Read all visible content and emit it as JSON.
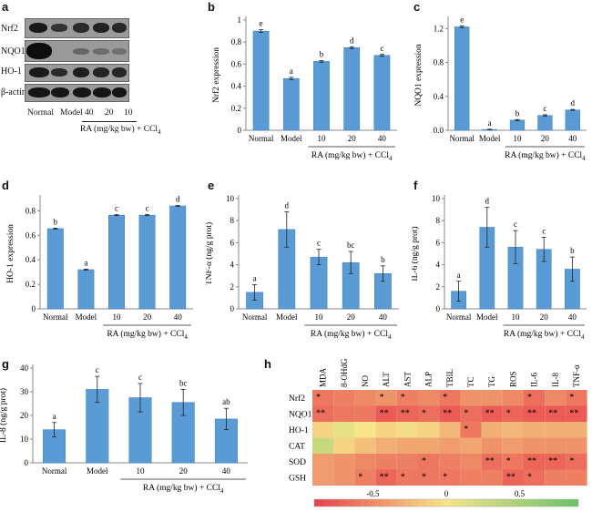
{
  "panel_labels": {
    "a": "a",
    "b": "b",
    "c": "c",
    "d": "d",
    "e": "e",
    "f": "f",
    "g": "g",
    "h": "h"
  },
  "blot": {
    "rows": [
      "Nrf2",
      "NQO1",
      "HO-1",
      "β-actin"
    ],
    "lanes": [
      "Normal",
      "Model",
      "40",
      "20",
      "10"
    ],
    "group_label": "RA (mg/kg bw) + CCl",
    "group_sub": "4"
  },
  "colors": {
    "bar": "#5b9bd5",
    "bar_edge": "#3f7fbf",
    "low": "#e8404a",
    "mid": "#f6e58a",
    "high": "#6abf69"
  },
  "chart_data": [
    {
      "id": "b",
      "type": "bar",
      "categories": [
        "Normal",
        "Model",
        "10",
        "20",
        "40"
      ],
      "values": [
        0.9,
        0.47,
        0.625,
        0.75,
        0.68
      ],
      "errors": [
        0.012,
        0.01,
        0.008,
        0.008,
        0.008
      ],
      "letters": [
        "e",
        "a",
        "b",
        "d",
        "c"
      ],
      "ylabel": "Nrf2 expression",
      "xlabel": "RA (mg/kg bw) + CCl",
      "xlabel_sub": "4",
      "ylim": [
        0,
        1
      ],
      "ticks": [
        "0",
        "0.2",
        "0.4",
        "0.6",
        "0.8",
        "1"
      ],
      "tick_values": [
        0,
        0.2,
        0.4,
        0.6,
        0.8,
        1
      ]
    },
    {
      "id": "c",
      "type": "bar",
      "categories": [
        "Normal",
        "Model",
        "10",
        "20",
        "40"
      ],
      "values": [
        1.22,
        0.01,
        0.12,
        0.175,
        0.24
      ],
      "errors": [
        0.012,
        0.003,
        0.006,
        0.008,
        0.006
      ],
      "letters": [
        "e",
        "a",
        "b",
        "c",
        "d"
      ],
      "ylabel": "NQO1 expression",
      "xlabel": "RA (mg/kg bw) + CCl",
      "xlabel_sub": "4",
      "ylim": [
        0,
        1.3
      ],
      "ticks": [
        "0.0",
        "0.4",
        "0.8",
        "1.2"
      ],
      "tick_values": [
        0,
        0.4,
        0.8,
        1.2
      ]
    },
    {
      "id": "d",
      "type": "bar",
      "categories": [
        "Normal",
        "Model",
        "10",
        "20",
        "40"
      ],
      "values": [
        0.655,
        0.32,
        0.765,
        0.765,
        0.84
      ],
      "errors": [
        0.004,
        0.004,
        0.004,
        0.004,
        0.004
      ],
      "letters": [
        "b",
        "a",
        "c",
        "c",
        "d"
      ],
      "ylabel": "HO-1 expression",
      "xlabel": "RA (mg/kg bw) + CCl",
      "xlabel_sub": "4",
      "ylim": [
        0,
        0.9
      ],
      "ticks": [
        "0",
        "0.2",
        "0.4",
        "0.6",
        "0.8"
      ],
      "tick_values": [
        0,
        0.2,
        0.4,
        0.6,
        0.8
      ]
    },
    {
      "id": "e",
      "type": "bar",
      "categories": [
        "Normal",
        "Model",
        "10",
        "20",
        "40"
      ],
      "values": [
        1.5,
        7.2,
        4.7,
        4.2,
        3.2
      ],
      "errors": [
        0.7,
        1.6,
        0.7,
        1.0,
        0.7
      ],
      "letters": [
        "a",
        "d",
        "c",
        "bc",
        "b"
      ],
      "ylabel": "TNF-α (ng/g prot)",
      "xlabel": "RA (mg/kg bw) + CCl",
      "xlabel_sub": "4",
      "ylim": [
        0,
        10
      ],
      "ticks": [
        "0",
        "2",
        "4",
        "6",
        "8",
        "10"
      ],
      "tick_values": [
        0,
        2,
        4,
        6,
        8,
        10
      ]
    },
    {
      "id": "f",
      "type": "bar",
      "categories": [
        "Normal",
        "Model",
        "10",
        "20",
        "40"
      ],
      "values": [
        1.6,
        7.4,
        5.6,
        5.4,
        3.6
      ],
      "errors": [
        0.9,
        1.8,
        1.5,
        1.1,
        1.1
      ],
      "letters": [
        "a",
        "d",
        "c",
        "c",
        "b"
      ],
      "ylabel": "IL-6 (ng/g prot)",
      "xlabel": "RA (mg/kg bw) + CCl",
      "xlabel_sub": "4",
      "ylim": [
        0,
        10
      ],
      "ticks": [
        "0",
        "2",
        "4",
        "6",
        "8",
        "10"
      ],
      "tick_values": [
        0,
        2,
        4,
        6,
        8,
        10
      ]
    },
    {
      "id": "g",
      "type": "bar",
      "categories": [
        "Normal",
        "Model",
        "10",
        "20",
        "40"
      ],
      "values": [
        14,
        31,
        27.5,
        25.5,
        18.5
      ],
      "errors": [
        3,
        5.5,
        6,
        5.5,
        4.5
      ],
      "letters": [
        "a",
        "c",
        "c",
        "bc",
        "ab"
      ],
      "ylabel": "IL-8 (ng/g prot)",
      "xlabel": "RA (mg/kg bw) + CCl",
      "xlabel_sub": "4",
      "ylim": [
        0,
        40
      ],
      "ticks": [
        "0",
        "10",
        "20",
        "30",
        "40"
      ],
      "tick_values": [
        0,
        10,
        20,
        30,
        40
      ]
    },
    {
      "id": "h",
      "type": "heatmap",
      "columns": [
        "MDA",
        "8-OHdG",
        "NO",
        "ALT",
        "AST",
        "ALP",
        "TBIL",
        "TC",
        "TG",
        "ROS",
        "IL-6",
        "IL-8",
        "TNF-α"
      ],
      "rows": [
        "Nrf2",
        "NQO1",
        "HO-1",
        "CAT",
        "SOD",
        "GSH"
      ],
      "values": [
        [
          -0.6,
          -0.55,
          -0.5,
          -0.45,
          -0.55,
          -0.5,
          -0.6,
          -0.45,
          -0.45,
          -0.5,
          -0.65,
          -0.5,
          -0.6
        ],
        [
          -0.65,
          -0.6,
          -0.6,
          -0.75,
          -0.7,
          -0.65,
          -0.75,
          -0.65,
          -0.75,
          -0.7,
          -0.75,
          -0.75,
          -0.75
        ],
        [
          -0.1,
          0.1,
          0.0,
          -0.1,
          -0.05,
          -0.1,
          -0.25,
          -0.6,
          -0.3,
          -0.25,
          -0.3,
          -0.3,
          -0.3
        ],
        [
          0.3,
          -0.1,
          -0.2,
          -0.3,
          -0.35,
          -0.35,
          -0.4,
          -0.35,
          -0.45,
          -0.4,
          -0.45,
          -0.45,
          -0.45
        ],
        [
          -0.4,
          -0.45,
          -0.5,
          -0.55,
          -0.55,
          -0.6,
          -0.55,
          -0.5,
          -0.65,
          -0.6,
          -0.7,
          -0.7,
          -0.65
        ],
        [
          -0.4,
          -0.45,
          -0.55,
          -0.7,
          -0.6,
          -0.6,
          -0.6,
          -0.55,
          -0.55,
          -0.7,
          -0.65,
          -0.55,
          -0.55
        ]
      ],
      "stars": [
        [
          "*",
          "",
          "",
          "*",
          "*",
          "",
          "*",
          "",
          "",
          "",
          "*",
          "",
          "*"
        ],
        [
          "**",
          "",
          "",
          "**",
          "**",
          "*",
          "**",
          "*",
          "**",
          "*",
          "**",
          "**",
          "**"
        ],
        [
          "",
          "",
          "",
          "",
          "",
          "",
          "",
          "*",
          "",
          "",
          "",
          "",
          ""
        ],
        [
          "",
          "",
          "",
          "",
          "",
          "",
          "",
          "",
          "",
          "",
          "",
          "",
          ""
        ],
        [
          "",
          "",
          "",
          "",
          "",
          "*",
          "",
          "",
          "**",
          "*",
          "**",
          "**",
          "*"
        ],
        [
          "",
          "",
          "*",
          "**",
          "*",
          "*",
          "*",
          "",
          "",
          "**",
          "*",
          "",
          ""
        ]
      ],
      "colorbar_ticks": [
        "-0.5",
        "0",
        "0.5"
      ],
      "colorbar_tick_values": [
        -0.5,
        0,
        0.5
      ],
      "range": [
        -0.9,
        0.9
      ]
    }
  ]
}
